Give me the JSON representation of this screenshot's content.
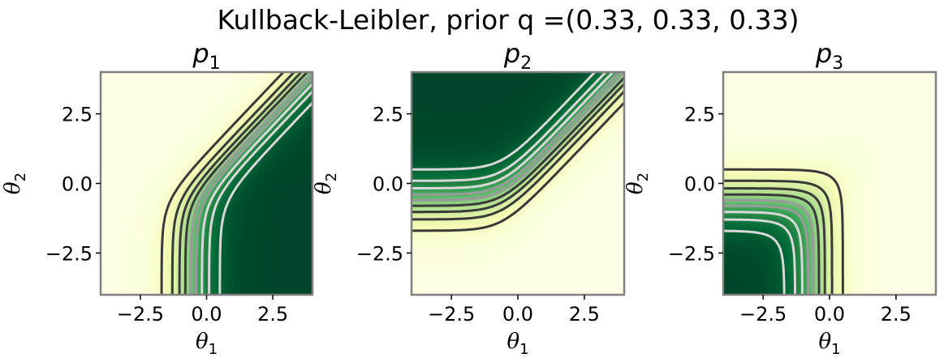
{
  "suptitle": "Kullback-Leibler, prior q =(0.33, 0.33, 0.33)",
  "panels": [
    {
      "title_base": "p",
      "title_sub": "1",
      "xlabel_base": "θ",
      "xlabel_sub": "1",
      "ylabel_base": "θ",
      "ylabel_sub": "2"
    },
    {
      "title_base": "p",
      "title_sub": "2",
      "xlabel_base": "θ",
      "xlabel_sub": "1",
      "ylabel_base": "θ",
      "ylabel_sub": "2"
    },
    {
      "title_base": "p",
      "title_sub": "3",
      "xlabel_base": "θ",
      "xlabel_sub": "1",
      "ylabel_base": "θ",
      "ylabel_sub": "2"
    }
  ],
  "chart_data": [
    {
      "type": "heatmap",
      "title": "p1",
      "xlabel": "θ1",
      "ylabel": "θ2",
      "xlim": [
        -4,
        4
      ],
      "ylim": [
        -4,
        4
      ],
      "xticks": [
        -2.5,
        0.0,
        2.5
      ],
      "yticks": [
        -2.5,
        0.0,
        2.5
      ],
      "xtick_labels": [
        "−2.5",
        "0.0",
        "2.5"
      ],
      "ytick_labels": [
        "−2.5",
        "0.0",
        "2.5"
      ],
      "colormap": "YlGn",
      "contour_style": "dotted",
      "contour_levels": [
        0.1,
        0.2,
        0.3,
        0.4,
        0.5,
        0.6,
        0.7,
        0.8,
        0.9
      ],
      "surface": "softmax class 1 (decreasing in θ2, increasing in θ1)"
    },
    {
      "type": "heatmap",
      "title": "p2",
      "xlabel": "θ1",
      "ylabel": "θ2",
      "xlim": [
        -4,
        4
      ],
      "ylim": [
        -4,
        4
      ],
      "xticks": [
        -2.5,
        0.0,
        2.5
      ],
      "yticks": [
        -2.5,
        0.0,
        2.5
      ],
      "xtick_labels": [
        "−2.5",
        "0.0",
        "2.5"
      ],
      "ytick_labels": [
        "−2.5",
        "0.0",
        "2.5"
      ],
      "colormap": "YlGn",
      "contour_style": "dotted",
      "contour_levels": [
        0.1,
        0.2,
        0.3,
        0.4,
        0.5,
        0.6,
        0.7,
        0.8,
        0.9
      ],
      "surface": "softmax class 2 (increasing in θ2, decreasing in θ1)"
    },
    {
      "type": "heatmap",
      "title": "p3",
      "xlabel": "θ1",
      "ylabel": "θ2",
      "xlim": [
        -4,
        4
      ],
      "ylim": [
        -4,
        4
      ],
      "xticks": [
        -2.5,
        0.0,
        2.5
      ],
      "yticks": [
        -2.5,
        0.0,
        2.5
      ],
      "xtick_labels": [
        "−2.5",
        "0.0",
        "2.5"
      ],
      "ytick_labels": [
        "−2.5",
        "0.0",
        "2.5"
      ],
      "colormap": "YlGn",
      "contour_style": "dotted",
      "contour_levels": [
        0.1,
        0.2,
        0.3,
        0.4,
        0.5,
        0.6,
        0.7,
        0.8,
        0.9
      ],
      "surface": "softmax reference class (high at low θ1 and low θ2)"
    }
  ]
}
